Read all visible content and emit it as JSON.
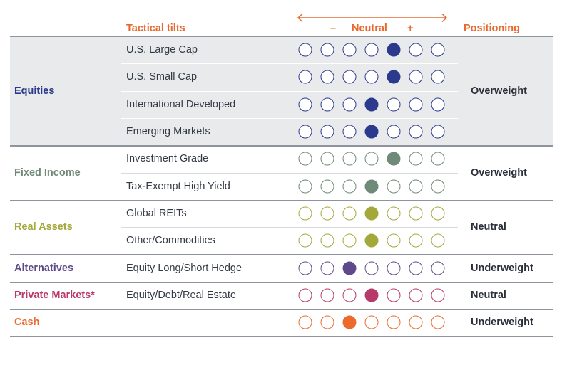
{
  "headers": {
    "tilts": "Tactical tilts",
    "minus": "–",
    "neutral": "Neutral",
    "plus": "+",
    "positioning": "Positioning"
  },
  "colors": {
    "accent": "#e8692e",
    "equities": "#2b3a8c",
    "fixed_income": "#6f8a78",
    "real_assets": "#a3a83a",
    "alternatives": "#5e4a8a",
    "private_markets": "#b83a6a",
    "cash": "#ec6a2c",
    "shade": "#e9eaec"
  },
  "chart_data": {
    "type": "table",
    "scale_points": 7,
    "scale_labels": [
      "–",
      "Neutral",
      "+"
    ],
    "groups": [
      {
        "name": "Equities",
        "color_key": "equities",
        "positioning": "Overweight",
        "rows": [
          {
            "label": "U.S. Large Cap",
            "tilt": 5
          },
          {
            "label": "U.S. Small Cap",
            "tilt": 5
          },
          {
            "label": "International Developed",
            "tilt": 4
          },
          {
            "label": "Emerging Markets",
            "tilt": 4
          }
        ]
      },
      {
        "name": "Fixed Income",
        "color_key": "fixed_income",
        "positioning": "Overweight",
        "rows": [
          {
            "label": "Investment Grade",
            "tilt": 5
          },
          {
            "label": "Tax-Exempt High Yield",
            "tilt": 4
          }
        ]
      },
      {
        "name": "Real Assets",
        "color_key": "real_assets",
        "positioning": "Neutral",
        "rows": [
          {
            "label": "Global REITs",
            "tilt": 4
          },
          {
            "label": "Other/Commodities",
            "tilt": 4
          }
        ]
      },
      {
        "name": "Alternatives",
        "color_key": "alternatives",
        "positioning": "Underweight",
        "rows": [
          {
            "label": "Equity Long/Short Hedge",
            "tilt": 3
          }
        ]
      },
      {
        "name": "Private Markets*",
        "color_key": "private_markets",
        "positioning": "Neutral",
        "rows": [
          {
            "label": "Equity/Debt/Real Estate",
            "tilt": 4
          }
        ]
      },
      {
        "name": "Cash",
        "color_key": "cash",
        "positioning": "Underweight",
        "rows": [
          {
            "label": "",
            "tilt": 3
          }
        ]
      }
    ]
  }
}
